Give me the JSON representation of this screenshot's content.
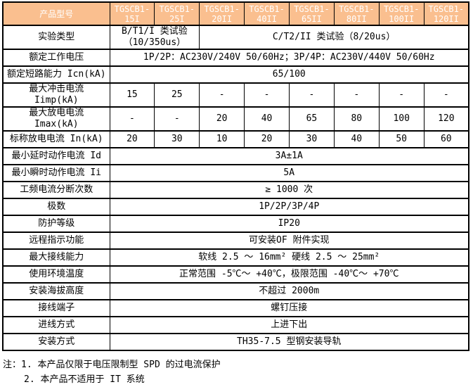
{
  "table": {
    "colors": {
      "header_bg": "#FABF8F",
      "header_text": "#FFFFFF",
      "border": "#000000"
    },
    "header": {
      "label": "产品型号",
      "models": [
        "TGSCB1-\n15I",
        "TGSCB1-\n25I",
        "TGSCB1-\n20II",
        "TGSCB1-\n40II",
        "TGSCB1-\n65II",
        "TGSCB1-\n80II",
        "TGSCB1-\n100II",
        "TGSCB1-\n120II"
      ]
    },
    "rows": [
      {
        "label": "实验类型",
        "cells": [
          "B/T1/I 类试验\n（10/350us）",
          "C/T2/II 类试验（8/20us）"
        ]
      },
      {
        "label": "额定工作电压",
        "value": "1P/2P：AC230V/240V 50/60Hz；3P/4P：AC230V/440V 50/60Hz"
      },
      {
        "label": "额定短路能力 Icn(kA)",
        "value": "65/100"
      },
      {
        "label": "最大冲击电流 Iimp(kA)",
        "values": [
          "15",
          "25",
          "-",
          "-",
          "-",
          "-",
          "-",
          "-"
        ]
      },
      {
        "label": "最大放电电流 Imax(kA)",
        "values": [
          "-",
          "-",
          "20",
          "40",
          "65",
          "80",
          "100",
          "120"
        ]
      },
      {
        "label": "标称放电电流 In(kA)",
        "values": [
          "20",
          "30",
          "10",
          "20",
          "30",
          "40",
          "50",
          "60"
        ]
      },
      {
        "label": "最小延时动作电流 Id",
        "value": "3A±1A"
      },
      {
        "label": "最小瞬时动作电流 Ii",
        "value": "5A"
      },
      {
        "label": "工频电流分断次数",
        "value": "≥ 1000 次"
      },
      {
        "label": "极数",
        "value": "1P/2P/3P/4P"
      },
      {
        "label": "防护等级",
        "value": "IP20"
      },
      {
        "label": "远程指示功能",
        "value": "可安装OF 附件实现"
      },
      {
        "label": "最大接线能力",
        "value": "软线 2.5 ～ 16mm² 硬线 2.5 ～ 25mm²"
      },
      {
        "label": "使用环境温度",
        "value": "正常范围 -5℃～ +40℃，极限范围 -40℃～ +70℃"
      },
      {
        "label": "安装海拔高度",
        "value": "不超过 2000m"
      },
      {
        "label": "接线端子",
        "value": "螺钉压接"
      },
      {
        "label": "进线方式",
        "value": "上进下出"
      },
      {
        "label": "安装方式",
        "value": "TH35-7.5 型钢安装导轨"
      }
    ],
    "notes": [
      "注：1. 本产品仅限于电压限制型 SPD 的过电流保护",
      "2. 本产品不适用于 IT 系统"
    ]
  }
}
